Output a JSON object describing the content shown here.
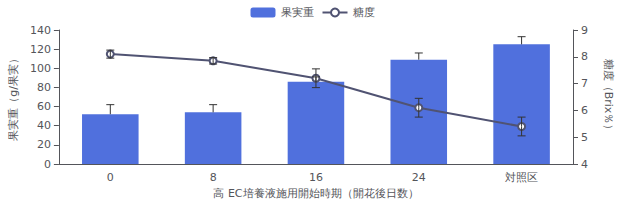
{
  "chart_data": {
    "type": "bar",
    "xlabel": "高 EC培養液施用開始時期（開花後日数）",
    "ylabel": "果実重（g/果実）",
    "y2label": "糖度（Brix％）",
    "categories": [
      "0",
      "8",
      "16",
      "24",
      "対照区"
    ],
    "series": [
      {
        "name": "果実重",
        "type": "bar",
        "values": [
          52,
          54,
          86,
          109,
          125
        ],
        "error_high": [
          10,
          8,
          5,
          7,
          8
        ]
      },
      {
        "name": "糖度",
        "type": "line",
        "axis": "y2",
        "marker": "circle",
        "values": [
          8.1,
          7.85,
          7.2,
          6.1,
          5.4
        ],
        "error_low": [
          0.15,
          0.12,
          0.35,
          0.35,
          0.35
        ],
        "error_high": [
          0.15,
          0.12,
          0.35,
          0.35,
          0.35
        ]
      }
    ],
    "ylim": [
      0,
      140
    ],
    "yticks": [
      0,
      20,
      40,
      60,
      80,
      100,
      120,
      140
    ],
    "y2lim": [
      4,
      9
    ],
    "y2ticks": [
      4,
      5,
      6,
      7,
      8,
      9
    ],
    "grid": false,
    "legend": "top"
  }
}
